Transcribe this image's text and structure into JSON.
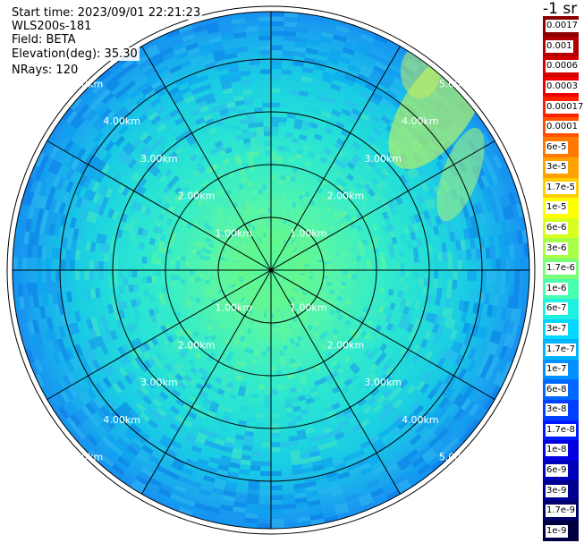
{
  "info": {
    "start_time": "Start time: 2023/09/01 22:21:23",
    "instrument": "WLS200s-181",
    "field": "Field: BETA",
    "elevation": "Elevation(deg): 35.30",
    "nrays": "NRays: 120"
  },
  "colorbar": {
    "title": "-1 sr",
    "entries": [
      {
        "label": "0.0017",
        "color": "#8b0000"
      },
      {
        "label": "0.001",
        "color": "#b00000"
      },
      {
        "label": "0.0006",
        "color": "#d40000"
      },
      {
        "label": "0.0003",
        "color": "#f00000"
      },
      {
        "label": "0.00017",
        "color": "#ff2200"
      },
      {
        "label": "0.0001",
        "color": "#ff5000"
      },
      {
        "label": "6e-5",
        "color": "#ff7a00"
      },
      {
        "label": "3e-5",
        "color": "#ffa200"
      },
      {
        "label": "1.7e-5",
        "color": "#ffcc00"
      },
      {
        "label": "1e-5",
        "color": "#ffff00"
      },
      {
        "label": "6e-6",
        "color": "#d8ff20"
      },
      {
        "label": "3e-6",
        "color": "#a8ff48"
      },
      {
        "label": "1.7e-6",
        "color": "#7aff78"
      },
      {
        "label": "1e-6",
        "color": "#48ffb0"
      },
      {
        "label": "6e-7",
        "color": "#20f0e0"
      },
      {
        "label": "3e-7",
        "color": "#00d8ff"
      },
      {
        "label": "1.7e-7",
        "color": "#00b4ff"
      },
      {
        "label": "1e-7",
        "color": "#0090ff"
      },
      {
        "label": "6e-8",
        "color": "#0068ff"
      },
      {
        "label": "3e-8",
        "color": "#0040ff"
      },
      {
        "label": "1.7e-8",
        "color": "#0018ff"
      },
      {
        "label": "1e-8",
        "color": "#0000e0"
      },
      {
        "label": "6e-9",
        "color": "#0000b8"
      },
      {
        "label": "3e-9",
        "color": "#000090"
      },
      {
        "label": "1.7e-9",
        "color": "#000068"
      },
      {
        "label": "1e-9",
        "color": "#000040"
      }
    ]
  },
  "range_rings": [
    "1.00km",
    "2.00km",
    "3.00km",
    "4.00km",
    "5.00km"
  ]
}
